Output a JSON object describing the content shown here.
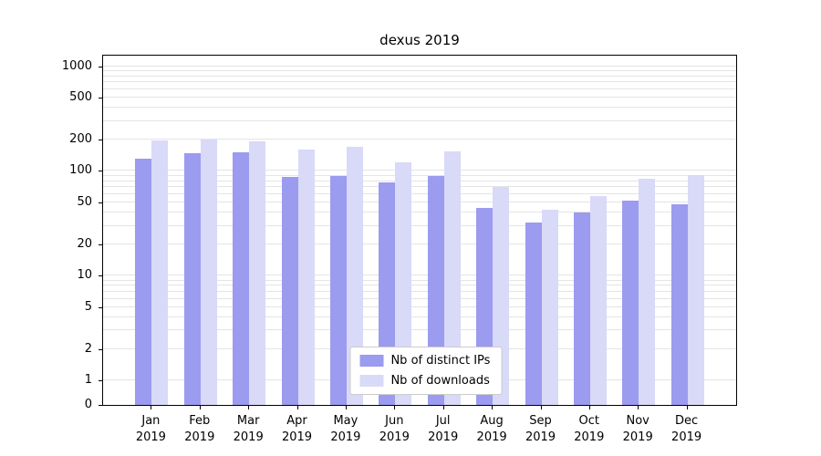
{
  "title": "dexus 2019",
  "chart_data": {
    "type": "bar",
    "title": "dexus 2019",
    "categories": [
      "Jan 2019",
      "Feb 2019",
      "Mar 2019",
      "Apr 2019",
      "May 2019",
      "Jun 2019",
      "Jul 2019",
      "Aug 2019",
      "Sep 2019",
      "Oct 2019",
      "Nov 2019",
      "Dec 2019"
    ],
    "series": [
      {
        "name": "Nb of distinct IPs",
        "color": "#9b9bef",
        "values": [
          130,
          148,
          150,
          88,
          90,
          78,
          90,
          44,
          32,
          40,
          52,
          48
        ]
      },
      {
        "name": "Nb of downloads",
        "color": "#d9d9f8",
        "values": [
          195,
          200,
          190,
          160,
          170,
          120,
          155,
          70,
          43,
          58,
          85,
          92
        ]
      }
    ],
    "xlabel": "",
    "ylabel": "",
    "yticks": [
      0,
      1,
      2,
      5,
      10,
      20,
      50,
      100,
      200,
      500,
      1000
    ],
    "ylim": [
      0,
      1000
    ],
    "yscale": "symlog",
    "grid": "horizontal-minor",
    "grid_color": "#e4e4e4",
    "legend_position": "lower center"
  }
}
